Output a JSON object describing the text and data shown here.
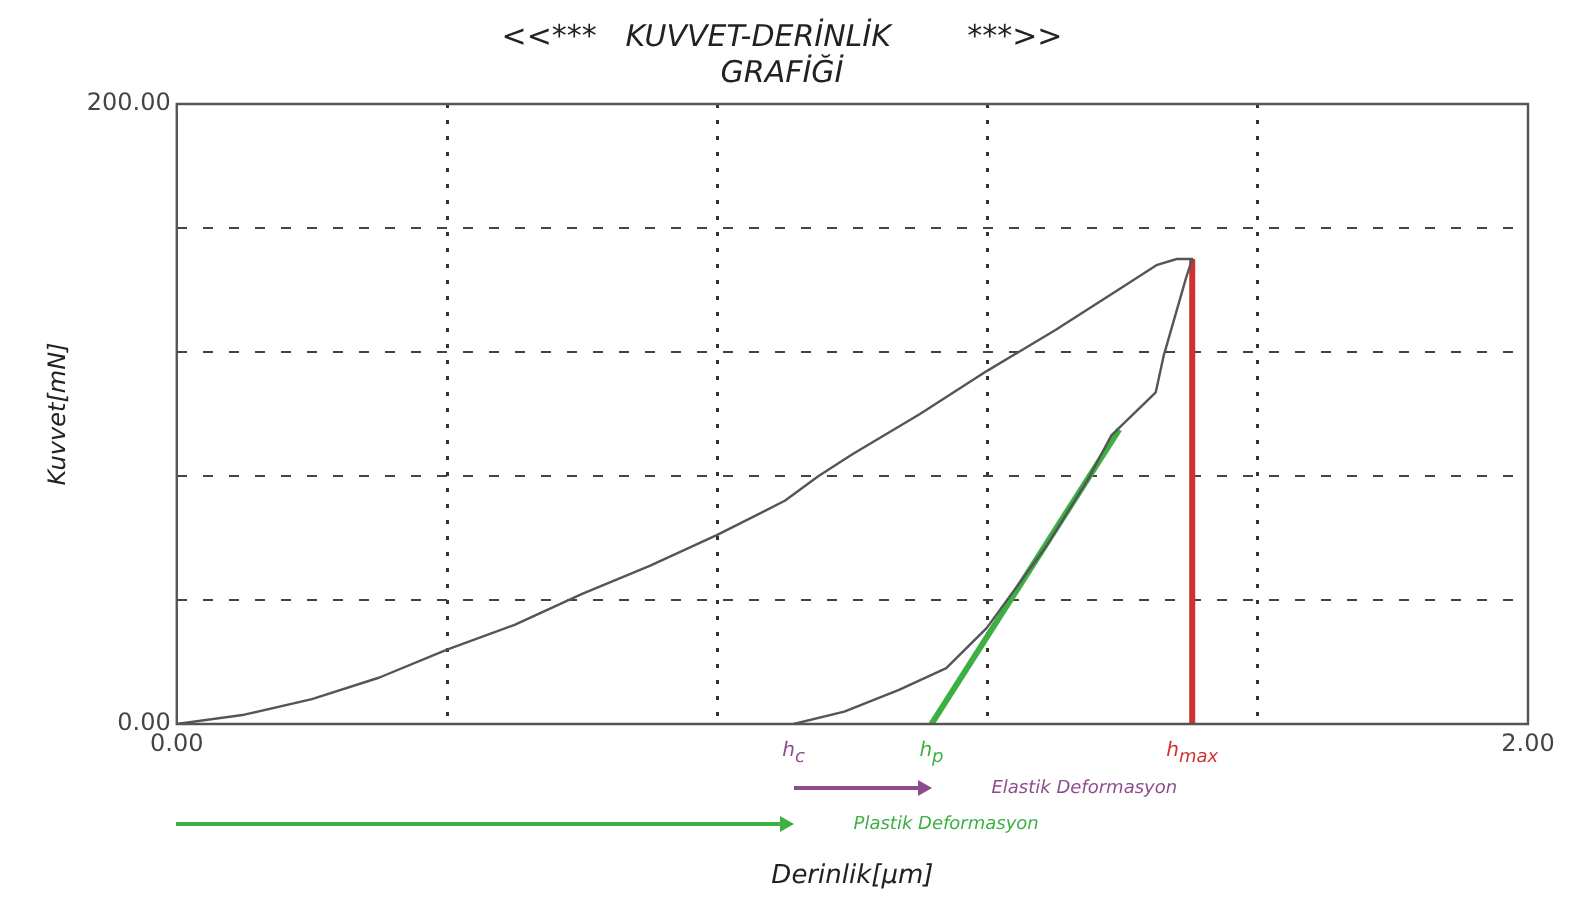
{
  "chart_data": {
    "type": "line",
    "title": "<<***   KUVVET-DERİNLİK        ***>>\nGRAFİĞİ",
    "xlabel": "Derinlik[μm]",
    "ylabel": "Kuvvet[mN]",
    "xlim": [
      0,
      2
    ],
    "ylim": [
      0,
      200
    ],
    "xticks": [
      {
        "value": 0,
        "label": "0.00"
      },
      {
        "value": 0.4,
        "label": null
      },
      {
        "value": 0.8,
        "label": null
      },
      {
        "value": 1.2,
        "label": null
      },
      {
        "value": 1.6,
        "label": null
      },
      {
        "value": 2,
        "label": "2.00"
      }
    ],
    "yticks": [
      {
        "value": 0,
        "label": "0.00"
      },
      {
        "value": 40,
        "label": null
      },
      {
        "value": 80,
        "label": null
      },
      {
        "value": 120,
        "label": null
      },
      {
        "value": 160,
        "label": null
      },
      {
        "value": 200,
        "label": "200.00"
      }
    ],
    "grid": true,
    "marker": "none",
    "series": [
      {
        "color": "#555555",
        "x": [
          0,
          0.1,
          0.2,
          0.3,
          0.4,
          0.5,
          0.6,
          0.7,
          0.8,
          0.9,
          0.95,
          1.0,
          1.1,
          1.2,
          1.3,
          1.4,
          1.45,
          1.48,
          1.503,
          1.494,
          1.461,
          1.449,
          1.383,
          1.349,
          1.289,
          1.199,
          1.139,
          1.069,
          0.988,
          0.913
        ],
        "values": [
          0,
          3,
          8,
          15,
          24,
          32,
          42,
          51,
          61,
          72,
          80,
          87,
          100,
          114,
          127,
          141,
          148,
          150,
          150,
          144,
          119,
          107,
          93,
          79,
          58,
          31,
          18,
          11,
          4,
          0
        ]
      },
      {
        "color": "#3cb043",
        "x": [
          1.117,
          1.395
        ],
        "values": [
          0,
          95
        ]
      },
      {
        "color": "#d03030",
        "x": [
          1.503,
          1.503
        ],
        "values": [
          0,
          150
        ]
      }
    ],
    "annotations": [
      {
        "text": "h$_{c}$",
        "x": 0.913,
        "y": 0
      },
      {
        "text": "h$_{p}$",
        "x": 1.117,
        "y": 0
      },
      {
        "text": "h$_{max}$",
        "x": 1.503,
        "y": 0
      },
      "Elastik Deformasyon",
      "Plastik Deformasyon"
    ]
  }
}
